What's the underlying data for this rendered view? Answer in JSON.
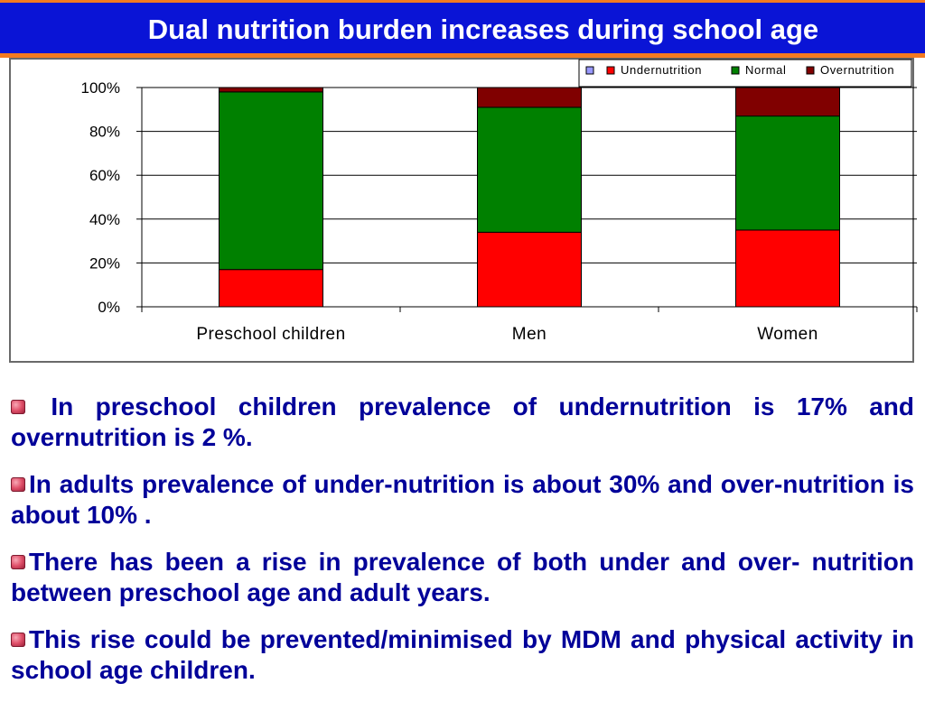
{
  "slide": {
    "title": "Dual nutrition burden increases  during school age",
    "bullets": [
      " In preschool children prevalence of undernutrition is 17% and overnutrition is 2 %.",
      "In adults prevalence of under-nutrition is about 30% and over-nutrition    is about 10% .",
      "There has been a rise in prevalence of both under and over- nutrition between preschool age and adult years.",
      "This rise could be prevented/minimised by MDM and physical activity  in school age children."
    ],
    "bullet_icon": "flower-bullet-icon"
  },
  "chart_data": {
    "type": "bar",
    "stacked": true,
    "percent_stacked": true,
    "categories": [
      "Preschool children",
      "Men",
      "Women"
    ],
    "series": [
      {
        "name": "Undernutrition",
        "values": [
          17,
          34,
          35
        ],
        "color": "#ff0000"
      },
      {
        "name": "Normal",
        "values": [
          81,
          57,
          52
        ],
        "color": "#008000"
      },
      {
        "name": "Overnutrition",
        "values": [
          2,
          9,
          13
        ],
        "color": "#800000"
      }
    ],
    "y_tick_labels": [
      "0%",
      "20%",
      "40%",
      "60%",
      "80%",
      "100%"
    ],
    "ylim": [
      0,
      100
    ],
    "grid": true,
    "legend_position": "top-right",
    "legend_extra_swatch_color": "#9999ff"
  }
}
